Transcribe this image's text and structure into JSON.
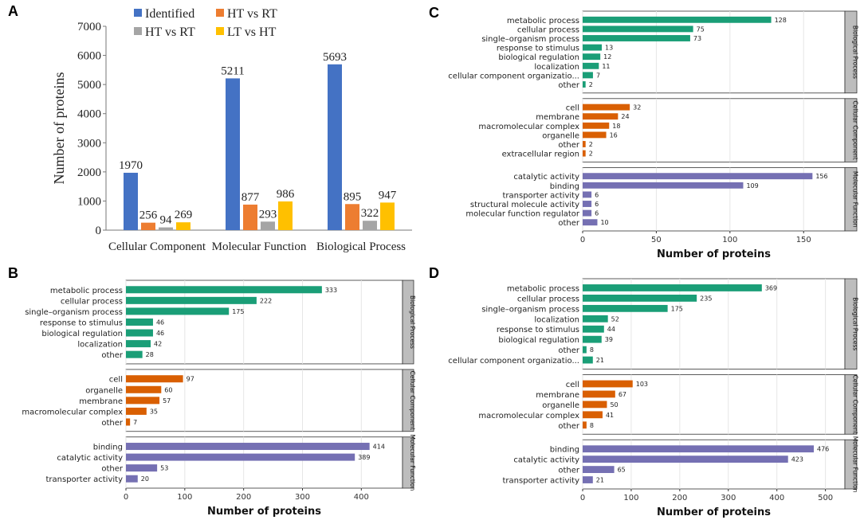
{
  "panels": {
    "a": "A",
    "b": "B",
    "c": "C",
    "d": "D"
  },
  "chart_data": [
    {
      "panel": "A",
      "type": "bar",
      "title": "",
      "xlabel": "",
      "ylabel": "Number of proteins",
      "ylim": [
        0,
        7000
      ],
      "yticks": [
        "0",
        "1000",
        "2000",
        "3000",
        "4000",
        "5000",
        "6000",
        "7000"
      ],
      "categories": [
        "Cellular Component",
        "Molecular Function",
        "Biological Process"
      ],
      "series": [
        {
          "name": "Identified",
          "color": "#4472c4",
          "values": [
            1970,
            5211,
            5693
          ]
        },
        {
          "name": "HT vs RT",
          "color": "#ed7d31",
          "values": [
            256,
            877,
            895
          ]
        },
        {
          "name": "HT vs RT",
          "color": "#a5a5a5",
          "values": [
            94,
            293,
            322
          ]
        },
        {
          "name": "LT vs  HT",
          "color": "#ffc000",
          "values": [
            269,
            986,
            947
          ]
        }
      ],
      "legend": "top"
    },
    {
      "panel": "B",
      "type": "bar",
      "orientation": "horizontal",
      "xlabel": "Number of proteins",
      "xlim": [
        0,
        470
      ],
      "xticks": [
        0,
        100,
        200,
        300,
        400
      ],
      "groups": [
        {
          "name": "Biological Process",
          "color": "#1a9e77",
          "categories": [
            "metabolic process",
            "cellular process",
            "single–organism process",
            "response to stimulus",
            "biological regulation",
            "localization",
            "other"
          ],
          "values": [
            333,
            222,
            175,
            46,
            46,
            42,
            28
          ]
        },
        {
          "name": "Cellular Component",
          "color": "#d95f02",
          "categories": [
            "cell",
            "organelle",
            "membrane",
            "macromolecular complex",
            "other"
          ],
          "values": [
            97,
            60,
            57,
            35,
            7
          ]
        },
        {
          "name": "Molecular Function",
          "color": "#7570b3",
          "categories": [
            "binding",
            "catalytic activity",
            "other",
            "transporter activity"
          ],
          "values": [
            414,
            389,
            53,
            20
          ]
        }
      ]
    },
    {
      "panel": "C",
      "type": "bar",
      "orientation": "horizontal",
      "xlabel": "Number of proteins",
      "xlim": [
        0,
        178
      ],
      "xticks": [
        0,
        50,
        100,
        150
      ],
      "groups": [
        {
          "name": "Biological Process",
          "color": "#1a9e77",
          "categories": [
            "metabolic process",
            "cellular process",
            "single–organism process",
            "response to stimulus",
            "biological regulation",
            "localization",
            "cellular component organizatio...",
            "other"
          ],
          "values": [
            128,
            75,
            73,
            13,
            12,
            11,
            7,
            2
          ]
        },
        {
          "name": "Cellular Component",
          "color": "#d95f02",
          "categories": [
            "cell",
            "membrane",
            "macromolecular complex",
            "organelle",
            "other",
            "extracellular region"
          ],
          "values": [
            32,
            24,
            18,
            16,
            2,
            2
          ]
        },
        {
          "name": "Molecular Function",
          "color": "#7570b3",
          "categories": [
            "catalytic activity",
            "binding",
            "transporter activity",
            "structural molecule activity",
            "molecular function regulator",
            "other"
          ],
          "values": [
            156,
            109,
            6,
            6,
            6,
            10
          ]
        }
      ]
    },
    {
      "panel": "D",
      "type": "bar",
      "orientation": "horizontal",
      "xlabel": "Number of proteins",
      "xlim": [
        0,
        540
      ],
      "xticks": [
        0,
        100,
        200,
        300,
        400,
        500
      ],
      "groups": [
        {
          "name": "Biological Process",
          "color": "#1a9e77",
          "categories": [
            "metabolic process",
            "cellular process",
            "single–organism process",
            "localization",
            "response to stimulus",
            "biological regulation",
            "other",
            "cellular component organizatio..."
          ],
          "values": [
            369,
            235,
            175,
            52,
            44,
            39,
            8,
            21
          ]
        },
        {
          "name": "Cellular Component",
          "color": "#d95f02",
          "categories": [
            "cell",
            "membrane",
            "organelle",
            "macromolecular complex",
            "other"
          ],
          "values": [
            103,
            67,
            50,
            41,
            8
          ]
        },
        {
          "name": "Molecular Function",
          "color": "#7570b3",
          "categories": [
            "binding",
            "catalytic activity",
            "other",
            "transporter activity"
          ],
          "values": [
            476,
            423,
            65,
            21
          ]
        }
      ]
    }
  ]
}
